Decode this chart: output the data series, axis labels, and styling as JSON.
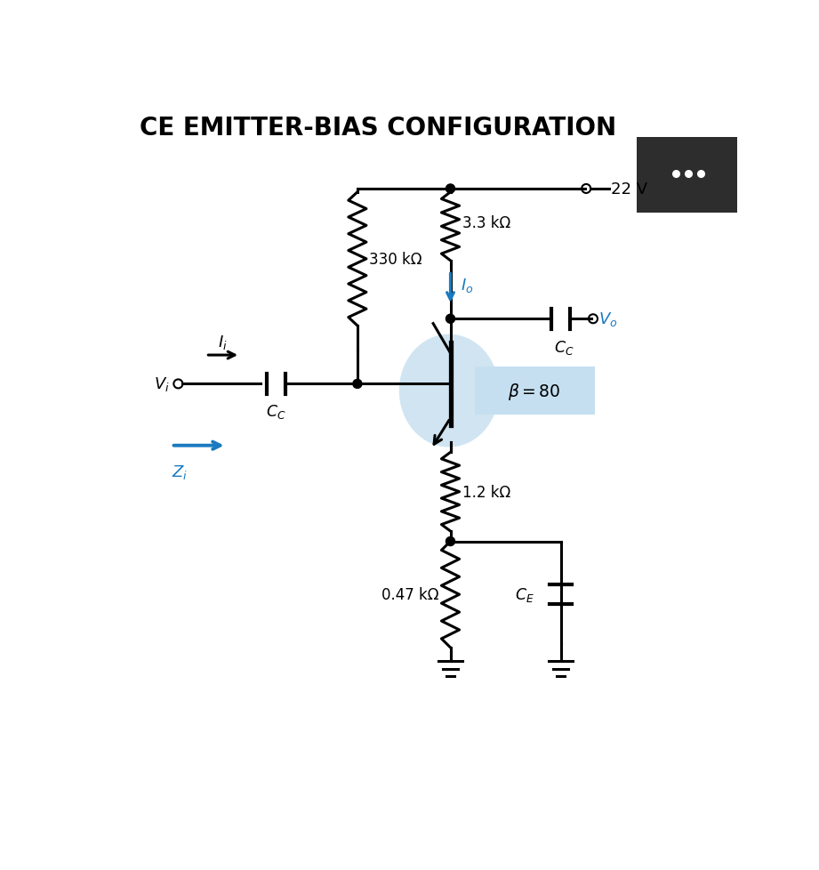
{
  "title": "CE EMITTER-BIAS CONFIGURATION",
  "title_fontsize": 20,
  "title_fontweight": "bold",
  "bg_color": "#ffffff",
  "dark_panel_color": "#2d2d2d",
  "blue_highlight_color": "#b8d8ea",
  "blue_arrow_color": "#1a7abf",
  "line_color": "#000000",
  "text_color": "#000000",
  "beta_box_color": "#c5dff0",
  "r1_label": "330 kΩ",
  "r2_label": "3.3 kΩ",
  "re_label": "1.2 kΩ",
  "re2_label": "0.47 kΩ",
  "voltage_label": "22 V",
  "beta_label": "\\beta = 80",
  "figw": 9.21,
  "figh": 9.79,
  "dpi": 100
}
